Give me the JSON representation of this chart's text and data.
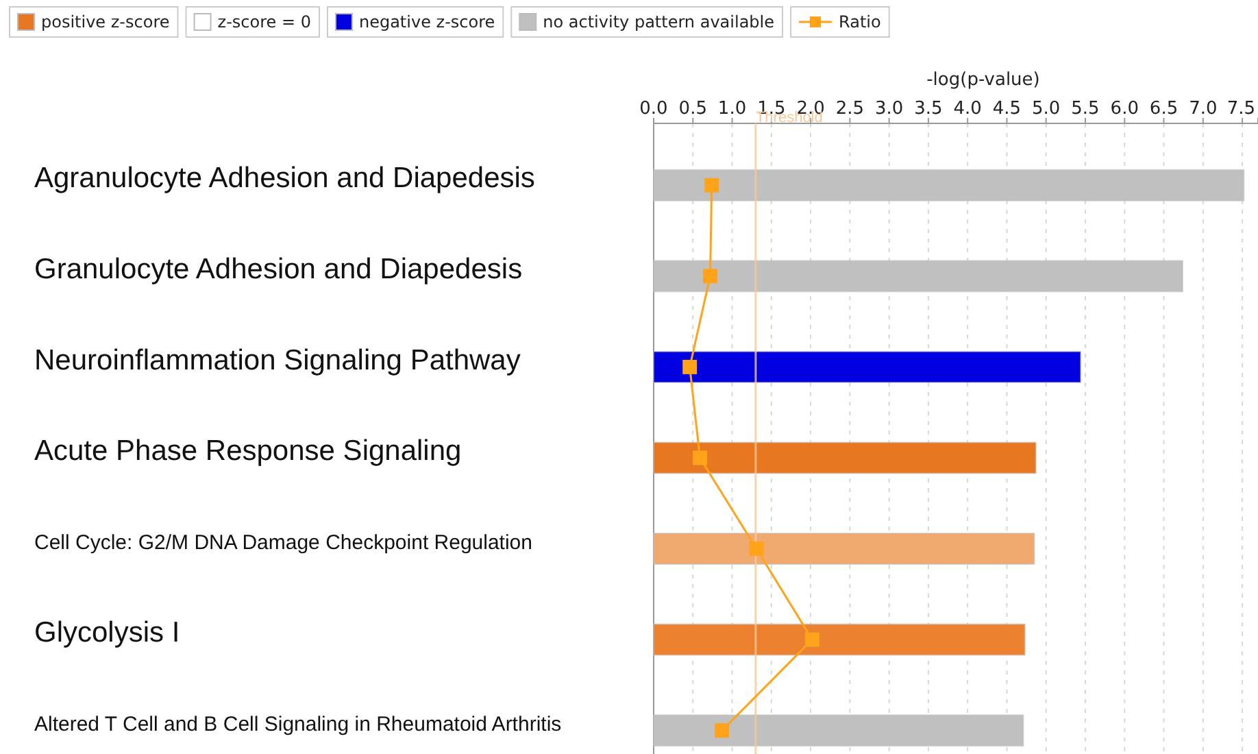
{
  "chart_data": {
    "type": "bar",
    "orientation": "horizontal",
    "xlabel": "-log(p-value)",
    "categories": [
      "Agranulocyte Adhesion and Diapedesis",
      "Granulocyte Adhesion and Diapedesis",
      "Neuroinflammation Signaling Pathway",
      "Acute Phase Response Signaling",
      "Cell Cycle: G2/M DNA Damage Checkpoint Regulation",
      "Glycolysis I",
      "Altered T Cell and B Cell Signaling in Rheumatoid Arthritis"
    ],
    "series": [
      {
        "name": "positive z-score",
        "color": "#e87722",
        "colors": [
          null,
          null,
          null,
          "#e87722",
          "#f0aa70",
          "#ec8130",
          null
        ],
        "values": [
          null,
          null,
          null,
          4.87,
          4.85,
          4.73,
          null
        ]
      },
      {
        "name": "z-score = 0",
        "color": "#ffffff",
        "values": [
          null,
          null,
          null,
          null,
          null,
          null,
          null
        ]
      },
      {
        "name": "negative z-score",
        "color": "#0000e0",
        "values": [
          null,
          null,
          5.44,
          null,
          null,
          null,
          null
        ]
      },
      {
        "name": "no activity pattern available",
        "color": "#c0c0c0",
        "values": [
          7.52,
          6.74,
          null,
          null,
          null,
          null,
          4.71
        ]
      },
      {
        "name": "Ratio",
        "type": "line",
        "color": "#ffa31a",
        "marker": "square",
        "values": [
          0.74,
          0.72,
          0.46,
          0.59,
          1.31,
          2.02,
          0.87
        ]
      }
    ],
    "xlim": [
      0,
      7.7
    ],
    "xticks": [
      {
        "value": 0,
        "label": "0.0"
      },
      {
        "value": 0.5,
        "label": "0.5"
      },
      {
        "value": 1,
        "label": "1.0"
      },
      {
        "value": 1.5,
        "label": "1.5"
      },
      {
        "value": 2,
        "label": "2.0"
      },
      {
        "value": 2.5,
        "label": "2.5"
      },
      {
        "value": 3,
        "label": "3.0"
      },
      {
        "value": 3.5,
        "label": "3.5"
      },
      {
        "value": 4,
        "label": "4.0"
      },
      {
        "value": 4.5,
        "label": "4.5"
      },
      {
        "value": 5,
        "label": "5.0"
      },
      {
        "value": 5.5,
        "label": "5.5"
      },
      {
        "value": 6,
        "label": "6.0"
      },
      {
        "value": 6.5,
        "label": "6.5"
      },
      {
        "value": 7,
        "label": "7.0"
      },
      {
        "value": 7.5,
        "label": "7.5"
      }
    ],
    "ref_lines": [
      {
        "axis": "x",
        "value": 1.3,
        "label": "Threshold",
        "color": "#f8c898"
      }
    ],
    "grid": "x",
    "legend": "top left"
  }
}
